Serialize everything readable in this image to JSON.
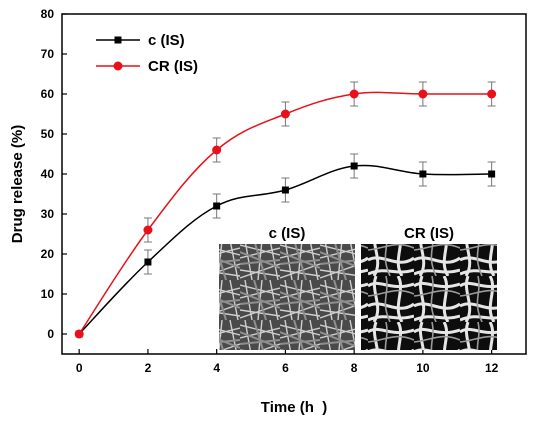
{
  "chart_data": {
    "type": "line",
    "title": "",
    "xlabel": "Time (h  )",
    "ylabel": "Drug release (%)",
    "xlim": [
      -0.5,
      13
    ],
    "ylim": [
      -5,
      80
    ],
    "xticks": [
      0,
      2,
      4,
      6,
      8,
      10,
      12
    ],
    "yticks": [
      0,
      10,
      20,
      30,
      40,
      50,
      60,
      70,
      80
    ],
    "grid": false,
    "legend_position": "top-left",
    "series": [
      {
        "name": "c (IS)",
        "color": "#000000",
        "marker": "square",
        "x": [
          0,
          2,
          4,
          6,
          8,
          10,
          12
        ],
        "y": [
          0,
          18,
          32,
          36,
          42,
          40,
          40
        ],
        "error": [
          0,
          3,
          3,
          3,
          3,
          3,
          3
        ]
      },
      {
        "name": "CR (IS)",
        "color": "#e8101a",
        "marker": "circle",
        "x": [
          0,
          2,
          4,
          6,
          8,
          10,
          12
        ],
        "y": [
          0,
          26,
          46,
          55,
          60,
          60,
          60
        ],
        "error": [
          0,
          3,
          3,
          3,
          3,
          3,
          3
        ]
      }
    ],
    "insets": [
      {
        "title": "c (IS)",
        "image": "SEM micrograph, fine dense fibers"
      },
      {
        "title": "CR (IS)",
        "image": "SEM micrograph, porous web-like fibers"
      }
    ]
  }
}
